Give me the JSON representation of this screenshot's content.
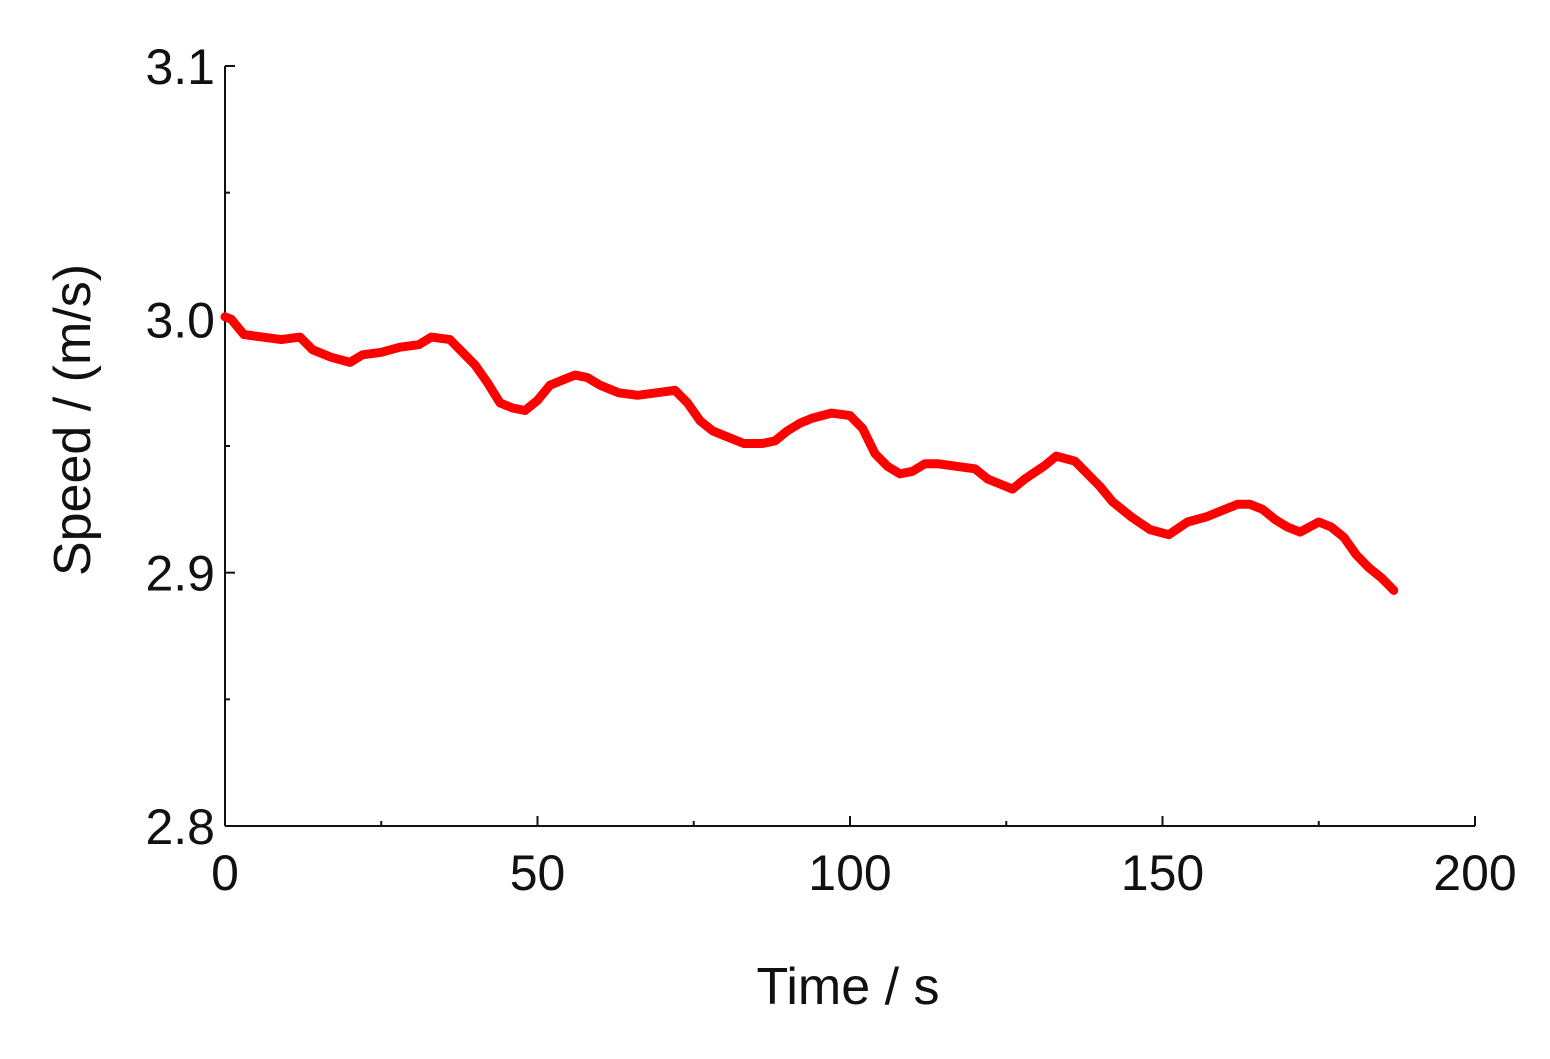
{
  "chart_data": {
    "type": "line",
    "title": "",
    "xlabel": "Time / s",
    "ylabel": "Speed / (m/s)",
    "xlim": [
      0,
      200
    ],
    "ylim": [
      2.8,
      3.1
    ],
    "x_ticks": [
      0,
      50,
      100,
      150,
      200
    ],
    "x_tick_labels": [
      "0",
      "50",
      "100",
      "150",
      "200"
    ],
    "x_minor_ticks": [
      25,
      75,
      125,
      175
    ],
    "y_ticks": [
      2.8,
      2.9,
      3.0,
      3.1
    ],
    "y_tick_labels": [
      "2.8",
      "2.9",
      "3.0",
      "3.1"
    ],
    "y_minor_ticks": [
      2.85,
      2.95,
      3.05
    ],
    "grid": false,
    "legend": "none",
    "series": [
      {
        "color": "#ff0000",
        "x": [
          0,
          1,
          3,
          6,
          9,
          12,
          14,
          17,
          20,
          22,
          25,
          28,
          31,
          33,
          36,
          38,
          40,
          42,
          44,
          46,
          48,
          50,
          52,
          54,
          56,
          58,
          60,
          63,
          66,
          69,
          72,
          74,
          76,
          78,
          80,
          83,
          86,
          88,
          90,
          92,
          94,
          97,
          100,
          102,
          104,
          106,
          108,
          110,
          112,
          114,
          117,
          120,
          122,
          124,
          126,
          128,
          131,
          133,
          136,
          138,
          140,
          142,
          145,
          148,
          151,
          154,
          157,
          160,
          162,
          164,
          166,
          168,
          170,
          172,
          175,
          177,
          179,
          181,
          183,
          185,
          187
        ],
        "y": [
          3.001,
          3.0,
          2.994,
          2.993,
          2.992,
          2.993,
          2.988,
          2.985,
          2.983,
          2.986,
          2.987,
          2.989,
          2.99,
          2.993,
          2.992,
          2.987,
          2.982,
          2.975,
          2.967,
          2.965,
          2.964,
          2.968,
          2.974,
          2.976,
          2.978,
          2.977,
          2.974,
          2.971,
          2.97,
          2.971,
          2.972,
          2.967,
          2.96,
          2.956,
          2.954,
          2.951,
          2.951,
          2.952,
          2.956,
          2.959,
          2.961,
          2.963,
          2.962,
          2.957,
          2.947,
          2.942,
          2.939,
          2.94,
          2.943,
          2.943,
          2.942,
          2.941,
          2.937,
          2.935,
          2.933,
          2.937,
          2.942,
          2.946,
          2.944,
          2.939,
          2.934,
          2.928,
          2.922,
          2.917,
          2.915,
          2.92,
          2.922,
          2.925,
          2.927,
          2.927,
          2.925,
          2.921,
          2.918,
          2.916,
          2.92,
          2.918,
          2.914,
          2.907,
          2.902,
          2.898,
          2.893
        ]
      }
    ]
  }
}
